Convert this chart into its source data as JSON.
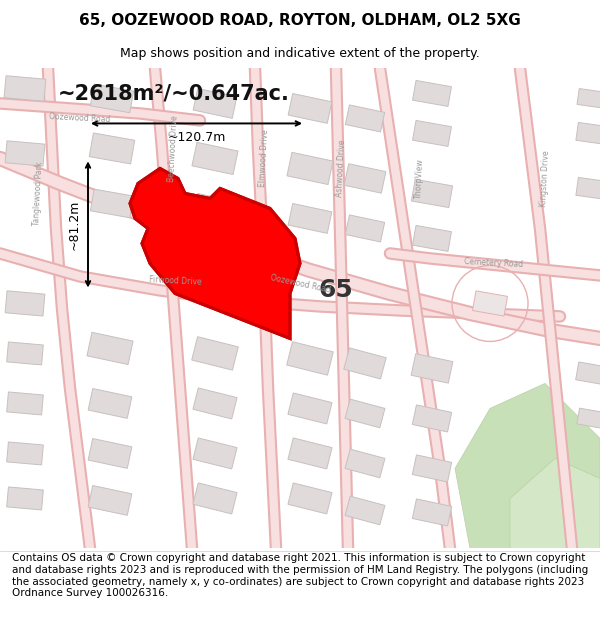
{
  "title": "65, OOZEWOOD ROAD, ROYTON, OLDHAM, OL2 5XG",
  "subtitle": "Map shows position and indicative extent of the property.",
  "area_text": "~2618m²/~0.647ac.",
  "width_label": "~120.7m",
  "height_label": "~81.2m",
  "number_label": "65",
  "footer": "Contains OS data © Crown copyright and database right 2021. This information is subject to Crown copyright and database rights 2023 and is reproduced with the permission of HM Land Registry. The polygons (including the associated geometry, namely x, y co-ordinates) are subject to Crown copyright and database rights 2023 Ordnance Survey 100026316.",
  "map_bg": "#f2eeec",
  "road_color": "#e8a8a8",
  "road_fill": "#f5d5d5",
  "building_fill": "#e0dada",
  "building_stroke": "#c8c0c0",
  "highlight_color": "#cc0000",
  "highlight_fill": "#ff000033",
  "green_area": "#d4e8c8",
  "green_area2": "#c8e0b8",
  "title_fontsize": 11,
  "subtitle_fontsize": 9,
  "footer_fontsize": 7.5,
  "label_color": "#aaaaaa",
  "dim_fontsize": 9,
  "area_fontsize": 15,
  "num_fontsize": 18
}
